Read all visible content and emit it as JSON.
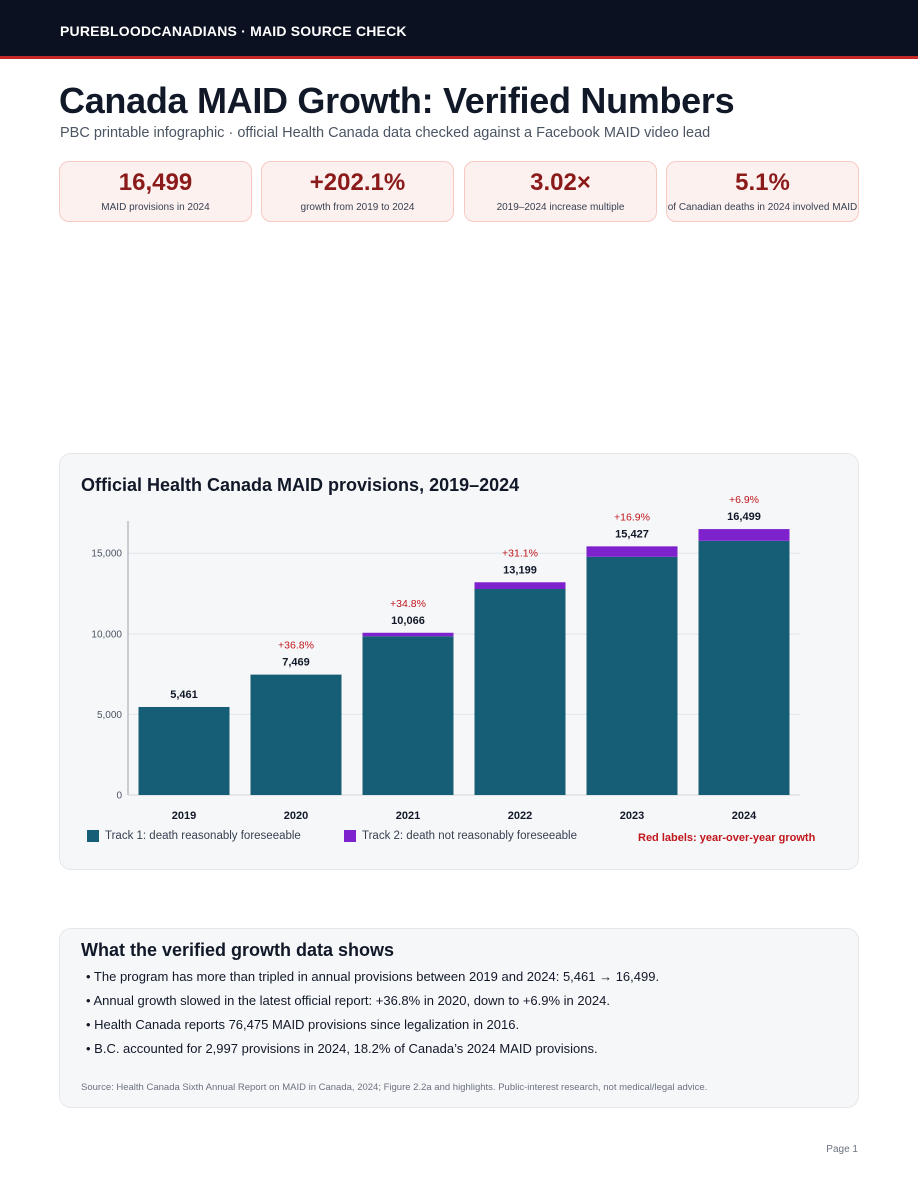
{
  "header": {
    "brand": "PUREBLOODCANADIANS · MAID SOURCE CHECK",
    "title": "Canada MAID Growth: Verified Numbers",
    "subtitle": "PBC printable infographic · official Health Canada data checked against a Facebook MAID video lead"
  },
  "kpis": [
    {
      "value": "16,499",
      "label": "MAID provisions in 2024"
    },
    {
      "value": "+202.1%",
      "label": "growth from 2019 to 2024"
    },
    {
      "value": "3.02×",
      "label": "2019–2024 increase multiple"
    },
    {
      "value": "5.1%",
      "label": "of Canadian deaths in 2024 involved MAID"
    }
  ],
  "chart_data": {
    "type": "bar",
    "stacked": true,
    "title": "Official Health Canada MAID provisions, 2019–2024",
    "xlabel": "",
    "ylabel": "",
    "categories": [
      "2019",
      "2020",
      "2021",
      "2022",
      "2023",
      "2024"
    ],
    "series": [
      {
        "name": "Track 1: death reasonably foreseeable",
        "values": [
          5461,
          7469,
          9847,
          12781,
          14777,
          15771
        ]
      },
      {
        "name": "Track 2: death not reasonably foreseeable",
        "values": [
          0,
          0,
          219,
          418,
          650,
          728
        ]
      }
    ],
    "totals": [
      5461,
      7469,
      10066,
      13199,
      15427,
      16499
    ],
    "total_labels": [
      "5,461",
      "7,469",
      "10,066",
      "13,199",
      "15,427",
      "16,499"
    ],
    "growth_labels": [
      "",
      "+36.8%",
      "+34.8%",
      "+31.1%",
      "+16.9%",
      "+6.9%"
    ],
    "yticks": [
      0,
      5000,
      10000,
      15000
    ],
    "ytick_labels": [
      "0",
      "5,000",
      "10,000",
      "15,000"
    ],
    "ylim": [
      0,
      17000
    ],
    "grid": true,
    "legend_position": "bottom",
    "growth_note": "Red labels: year-over-year growth",
    "colors": {
      "track1": "#155e75",
      "track2": "#7e22ce",
      "growth": "#c0161c"
    }
  },
  "findings": {
    "title": "What the verified growth data shows",
    "items": [
      "• The program has more than tripled in annual provisions between 2019 and 2024: 5,461 → 16,499.",
      "• Annual growth slowed in the latest official report: +36.8% in 2020, down to +6.9% in 2024.",
      "• Health Canada reports 76,475 MAID provisions since legalization in 2016.",
      "• B.C. accounted for 2,997 provisions in 2024, 18.2% of Canada’s 2024 MAID provisions."
    ],
    "source": "Source: Health Canada Sixth Annual Report on MAID in Canada, 2024; Figure 2.2a and highlights. Public-interest research, not medical/legal advice."
  },
  "footer": {
    "page": "Page 1"
  }
}
